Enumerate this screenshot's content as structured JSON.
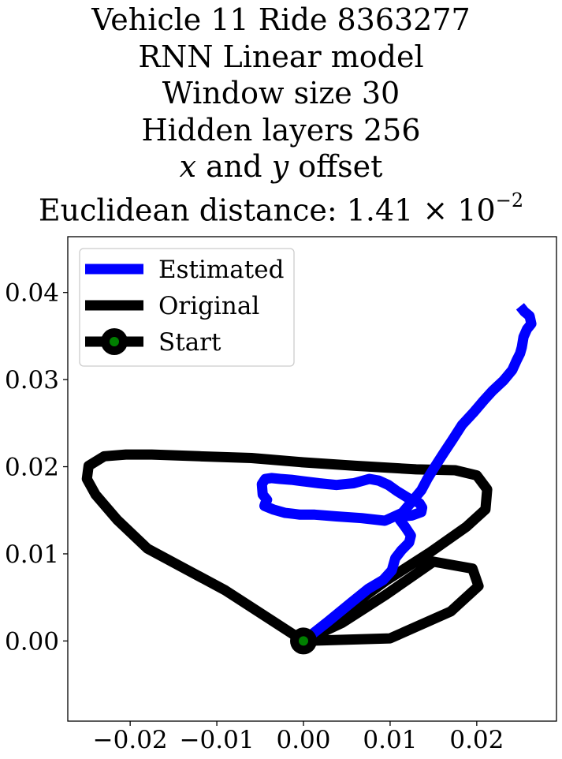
{
  "chart_data": {
    "type": "line",
    "title_lines": [
      "Vehicle 11 Ride 8363277",
      "RNN Linear model",
      "Window size 30",
      "Hidden layers 256"
    ],
    "title_offset_line": {
      "x": "x",
      "and": " and ",
      "y": "y",
      "rest": " offset"
    },
    "title_distance_line": {
      "prefix": "Euclidean distance: 1.41 × 10",
      "exponent": "−2"
    },
    "xlim": [
      -0.0272,
      0.0292
    ],
    "ylim": [
      -0.0092,
      0.0464
    ],
    "xticks": [
      -0.02,
      -0.01,
      0.0,
      0.01,
      0.02
    ],
    "xtick_labels": [
      "−0.02",
      "−0.01",
      "0.00",
      "0.01",
      "0.02"
    ],
    "yticks": [
      0.0,
      0.01,
      0.02,
      0.03,
      0.04
    ],
    "ytick_labels": [
      "0.00",
      "0.01",
      "0.02",
      "0.03",
      "0.04"
    ],
    "grid": false,
    "legend_position": "top-left",
    "series": [
      {
        "name": "Estimated",
        "color": "#0000ff",
        "x": [
          0.0,
          0.0028,
          0.0055,
          0.0075,
          0.0092,
          0.0102,
          0.0106,
          0.0113,
          0.0122,
          0.0124,
          0.0118,
          0.0112,
          0.011,
          0.0114,
          0.0125,
          0.0136,
          0.0137,
          0.0134,
          0.0121,
          0.0108,
          0.0098,
          0.0087,
          0.0076,
          0.0058,
          0.0038,
          0.0018,
          0.0002,
          -0.0014,
          -0.0027,
          -0.0037,
          -0.0044,
          -0.0048,
          -0.0047,
          -0.0042,
          -0.0044,
          -0.0045,
          -0.0035,
          -0.0021,
          -0.0012,
          -0.0004,
          0.0013,
          0.0038,
          0.0067,
          0.0094,
          0.0114,
          0.0126,
          0.0136,
          0.0143,
          0.0151,
          0.0162,
          0.0172,
          0.0183,
          0.0196,
          0.0208,
          0.0218,
          0.0231,
          0.0241,
          0.0246,
          0.025,
          0.0252,
          0.0254,
          0.0258,
          0.0263,
          0.0261,
          0.0255,
          0.025
        ],
        "y": [
          0.0,
          0.0022,
          0.0044,
          0.006,
          0.007,
          0.0081,
          0.0095,
          0.0104,
          0.0113,
          0.0121,
          0.013,
          0.0138,
          0.0141,
          0.0143,
          0.0144,
          0.0148,
          0.0153,
          0.0158,
          0.0164,
          0.0172,
          0.0179,
          0.0184,
          0.0186,
          0.0181,
          0.0179,
          0.0181,
          0.0183,
          0.0185,
          0.0186,
          0.0187,
          0.0186,
          0.018,
          0.0168,
          0.0162,
          0.0158,
          0.0155,
          0.0151,
          0.0147,
          0.0146,
          0.0145,
          0.0145,
          0.0143,
          0.0141,
          0.0138,
          0.0147,
          0.0161,
          0.0173,
          0.0186,
          0.0199,
          0.0216,
          0.0231,
          0.0248,
          0.0262,
          0.0276,
          0.0287,
          0.0299,
          0.0311,
          0.0322,
          0.033,
          0.0337,
          0.0349,
          0.0358,
          0.0364,
          0.0373,
          0.0378,
          0.0384
        ]
      },
      {
        "name": "Original",
        "color": "#000000",
        "x": [
          0.0,
          0.0045,
          0.0095,
          0.0145,
          0.0188,
          0.021,
          0.0212,
          0.02,
          0.0175,
          0.013,
          0.006,
          0.0,
          -0.006,
          -0.012,
          -0.0175,
          -0.0205,
          -0.023,
          -0.0248,
          -0.025,
          -0.024,
          -0.0215,
          -0.018,
          -0.018,
          -0.009,
          0.0,
          0.01,
          0.017,
          0.0202,
          0.0195,
          0.015,
          0.0095,
          0.0045,
          0.0
        ],
        "y": [
          0.0,
          0.0033,
          0.0069,
          0.0101,
          0.0131,
          0.0151,
          0.0174,
          0.019,
          0.0196,
          0.0197,
          0.0201,
          0.0205,
          0.021,
          0.0212,
          0.0214,
          0.0214,
          0.0212,
          0.0201,
          0.0186,
          0.0168,
          0.0139,
          0.0106,
          0.0106,
          0.0058,
          0.0,
          0.0003,
          0.0034,
          0.0063,
          0.0083,
          0.0091,
          0.0053,
          0.0021,
          0.0
        ]
      }
    ],
    "start_marker": {
      "name": "Start",
      "x": 0.0,
      "y": 0.0,
      "face_color": "#008000",
      "edge_color": "#000000"
    }
  }
}
